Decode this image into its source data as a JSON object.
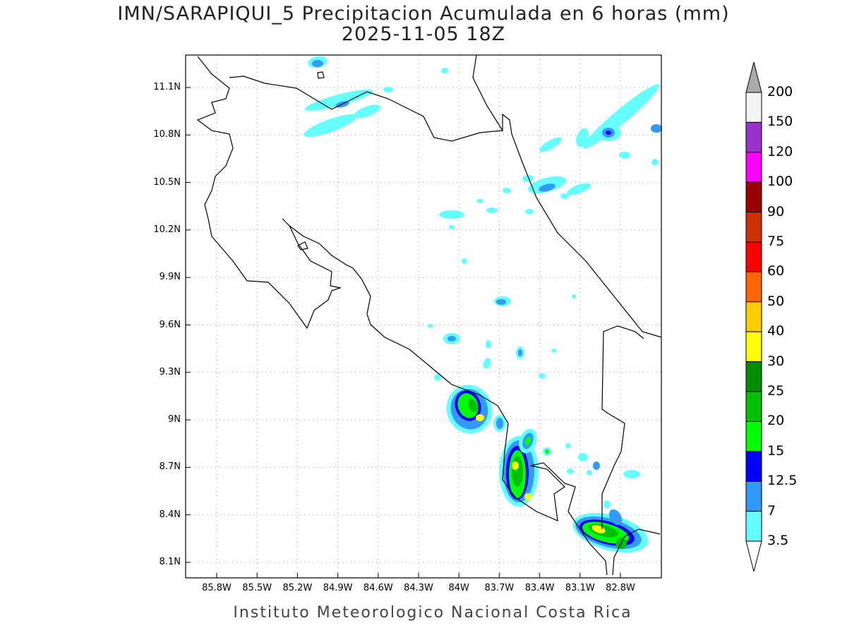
{
  "title": {
    "line1": "IMN/SARAPIQUI_5 Precipitacion Acumulada en 6 horas (mm)",
    "line2": "2025-11-05 18Z"
  },
  "map": {
    "lat_labels": [
      "11.1N",
      "10.8N",
      "10.5N",
      "10.2N",
      "9.9N",
      "9.6N",
      "9.3N",
      "9N",
      "8.7N",
      "8.4N",
      "8.1N"
    ],
    "lon_labels": [
      "85.8W",
      "85.5W",
      "85.2W",
      "84.9W",
      "84.6W",
      "84.3W",
      "84W",
      "83.7W",
      "83.4W",
      "83.1W",
      "82.8W"
    ]
  },
  "colorbar": {
    "labels": [
      "200",
      "150",
      "120",
      "100",
      "90",
      "75",
      "60",
      "50",
      "40",
      "30",
      "25",
      "20",
      "15",
      "12.5",
      "7",
      "3.5"
    ],
    "colors": [
      "#f4f4f4",
      "#9933cc",
      "#ff00ff",
      "#990000",
      "#cc3300",
      "#ff0000",
      "#ff6600",
      "#ffcc00",
      "#ffff00",
      "#008c00",
      "#00c000",
      "#00ff00",
      "#0000ff",
      "#3399ff",
      "#66ffff"
    ],
    "over_color": "#aaaaaa",
    "under_color": "#ffffff"
  },
  "footer": "Instituto Meteorologico Nacional Costa Rica"
}
